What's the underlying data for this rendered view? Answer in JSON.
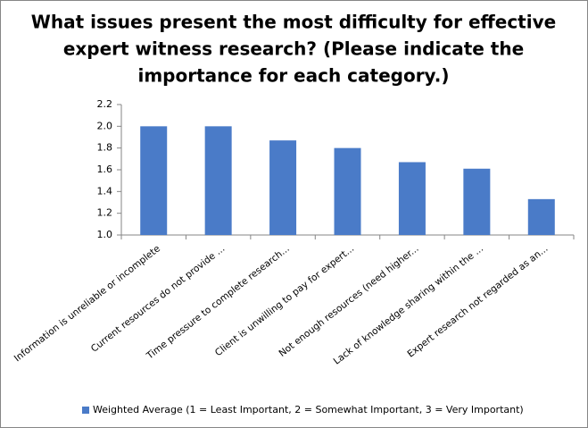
{
  "chart_data": {
    "type": "bar",
    "title": [
      "What issues present the most difficulty for effective",
      "expert witness research? (Please indicate the",
      "importance for each category.)"
    ],
    "categories": [
      "Information is unreliable or incomplete",
      "Current resources do not provide ...",
      "Time pressure to complete research...",
      "Client is unwilling to pay for expert...",
      "Not enough resources (need higher...",
      "Lack of knowledge sharing within the ...",
      "Expert research not regarded as an..."
    ],
    "series": [
      {
        "name": "Weighted Average (1 = Least Important, 2 = Somewhat Important, 3 = Very Important)",
        "color": "#4a7bc8",
        "values": [
          2.0,
          2.0,
          1.87,
          1.8,
          1.67,
          1.61,
          1.33
        ]
      }
    ],
    "ylim": [
      1,
      2.2
    ],
    "yticks": [
      {
        "value": 1,
        "label": "1.0"
      },
      1.2,
      1.4,
      1.6,
      1.8,
      {
        "value": 2,
        "label": "2.0"
      },
      2.2
    ],
    "grid": false
  }
}
